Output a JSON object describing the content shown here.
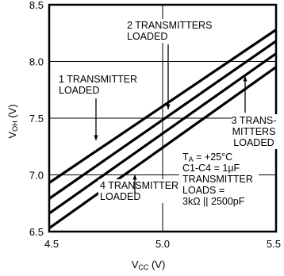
{
  "chart_data": {
    "type": "line",
    "xlabel": "V",
    "xlabel_sub": "CC",
    "xlabel_unit": " (V)",
    "ylabel": "V",
    "ylabel_sub": "OH",
    "ylabel_unit": " (V)",
    "xlim": [
      4.5,
      5.5
    ],
    "ylim": [
      6.5,
      8.5
    ],
    "x_ticks": [
      "4.5",
      "5.0",
      "5.5"
    ],
    "y_ticks": [
      "6.5",
      "7.0",
      "7.5",
      "8.0",
      "8.5"
    ],
    "grid": true,
    "series": [
      {
        "key": "s1",
        "x": [
          4.5,
          5.5
        ],
        "y": [
          6.93,
          8.28
        ]
      },
      {
        "key": "s2",
        "x": [
          4.5,
          5.5
        ],
        "y": [
          6.79,
          8.18
        ]
      },
      {
        "key": "s3",
        "x": [
          4.5,
          5.5
        ],
        "y": [
          6.66,
          8.07
        ]
      },
      {
        "key": "s4",
        "x": [
          4.5,
          5.5
        ],
        "y": [
          6.53,
          7.95
        ]
      }
    ],
    "annotations": [
      {
        "key": "a1",
        "lines": [
          "1 TRANSMITTER",
          "LOADED"
        ]
      },
      {
        "key": "a2",
        "lines": [
          "2 TRANSMITTERS",
          "LOADED"
        ]
      },
      {
        "key": "a3",
        "lines": [
          "3 TRANS-",
          "MITTERS",
          "LOADED"
        ]
      },
      {
        "key": "a4",
        "lines": [
          "4 TRANSMITTERS",
          "LOADED"
        ]
      }
    ],
    "conditions": {
      "ta_pre": "T",
      "ta_sub": "A",
      "ta_post": " = +25°C",
      "cap_pre": "C1-C4 = 1",
      "cap_mu": "μ",
      "cap_post": "F",
      "line3": "TRANSMITTER",
      "line4": "LOADS =",
      "line5": "3kΩ || 2500pF"
    }
  }
}
